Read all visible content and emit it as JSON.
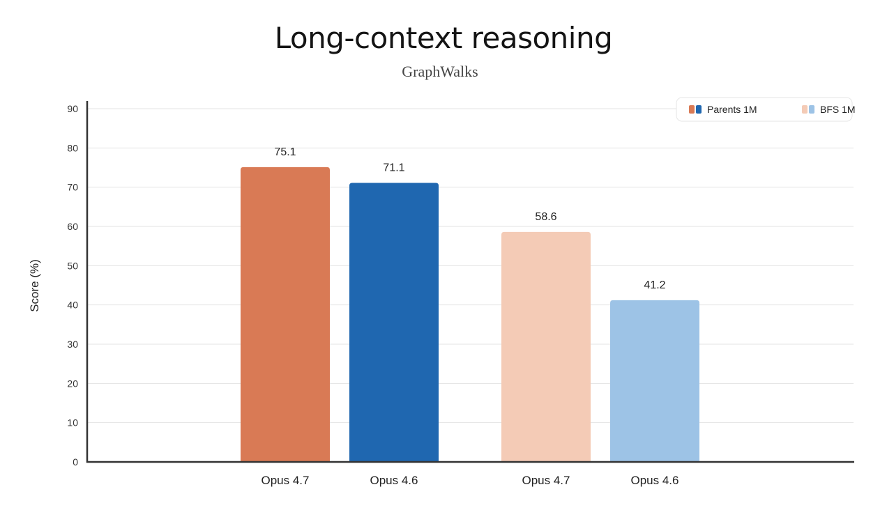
{
  "chart_data": {
    "type": "bar",
    "title": "Long-context reasoning",
    "subtitle": "GraphWalks",
    "xlabel": "",
    "ylabel": "Score (%)",
    "ylim": [
      0,
      90
    ],
    "yticks": [
      0,
      10,
      20,
      30,
      40,
      50,
      60,
      70,
      80,
      90
    ],
    "grid": true,
    "legend_position": "top-right",
    "legend": [
      {
        "name": "Parents 1M",
        "colors": [
          "#d97a55",
          "#1f67b0"
        ]
      },
      {
        "name": "BFS 1M",
        "colors": [
          "#f4cbb6",
          "#9dc3e6"
        ]
      }
    ],
    "bars": [
      {
        "category": "Opus 4.7",
        "group": "Parents 1M",
        "value": 75.1,
        "label": "75.1",
        "color": "#d97a55"
      },
      {
        "category": "Opus 4.6",
        "group": "Parents 1M",
        "value": 71.1,
        "label": "71.1",
        "color": "#1f67b0"
      },
      {
        "category": "Opus 4.7",
        "group": "BFS 1M",
        "value": 58.6,
        "label": "58.6",
        "color": "#f4cbb6"
      },
      {
        "category": "Opus 4.6",
        "group": "BFS 1M",
        "value": 41.2,
        "label": "41.2",
        "color": "#9dc3e6"
      }
    ]
  }
}
